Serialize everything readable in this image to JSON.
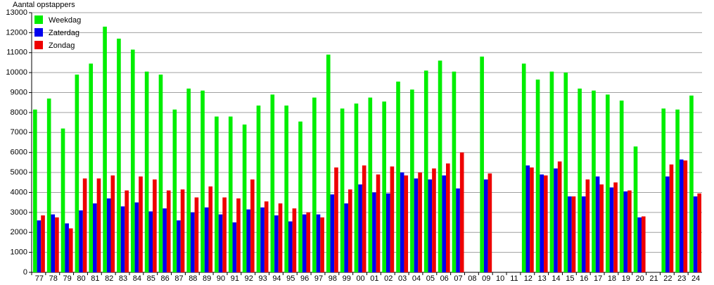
{
  "chart_data": {
    "type": "bar",
    "y_label": "Aantal opstappers",
    "categories": [
      "77",
      "78",
      "79",
      "80",
      "81",
      "82",
      "83",
      "84",
      "85",
      "86",
      "87",
      "88",
      "89",
      "90",
      "91",
      "92",
      "93",
      "94",
      "95",
      "96",
      "97",
      "98",
      "99",
      "00",
      "01",
      "02",
      "03",
      "04",
      "05",
      "06",
      "07",
      "08",
      "09",
      "10",
      "11",
      "12",
      "13",
      "14",
      "15",
      "16",
      "17",
      "18",
      "19",
      "20",
      "21",
      "22",
      "23",
      "24"
    ],
    "series": [
      {
        "name": "Weekdag",
        "color": "#00ee00",
        "values": [
          8150,
          8700,
          7200,
          9900,
          10450,
          12300,
          11700,
          11150,
          10050,
          9900,
          8150,
          9200,
          9100,
          7800,
          7800,
          7400,
          8350,
          8900,
          8350,
          7550,
          8750,
          10900,
          8200,
          8450,
          8750,
          8550,
          9550,
          9150,
          10100,
          10600,
          10050,
          null,
          10800,
          null,
          null,
          10450,
          9650,
          10050,
          10000,
          9200,
          9100,
          8900,
          8600,
          6300,
          null,
          8200,
          8150,
          8850
        ]
      },
      {
        "name": "Zaterdag",
        "color": "#0000ee",
        "values": [
          2600,
          2900,
          2450,
          3100,
          3450,
          3700,
          3300,
          3500,
          3050,
          3200,
          2600,
          3000,
          3250,
          2900,
          2500,
          3150,
          3250,
          2850,
          2550,
          2900,
          2900,
          3900,
          3450,
          4400,
          4000,
          3950,
          5000,
          4700,
          4650,
          4850,
          4200,
          null,
          4650,
          null,
          null,
          5350,
          4900,
          5200,
          3800,
          3800,
          4800,
          4250,
          4050,
          2750,
          null,
          4800,
          5650,
          3800
        ]
      },
      {
        "name": "Zondag",
        "color": "#ee0000",
        "values": [
          2850,
          2750,
          2200,
          4700,
          4700,
          4850,
          4100,
          4800,
          4650,
          4100,
          4150,
          3750,
          4300,
          3750,
          3700,
          4650,
          3550,
          3450,
          3200,
          3000,
          2750,
          5250,
          4150,
          5350,
          4900,
          5300,
          4850,
          5000,
          5200,
          5450,
          6000,
          null,
          4950,
          null,
          null,
          5250,
          4850,
          5550,
          3800,
          4650,
          4400,
          4500,
          4100,
          2800,
          null,
          5400,
          5600,
          3950
        ]
      }
    ],
    "ylim": [
      0,
      13000
    ],
    "yticks": [
      0,
      1000,
      2000,
      3000,
      4000,
      5000,
      6000,
      7000,
      8000,
      9000,
      10000,
      11000,
      12000,
      13000
    ],
    "grid": true,
    "legend": "top-left"
  }
}
